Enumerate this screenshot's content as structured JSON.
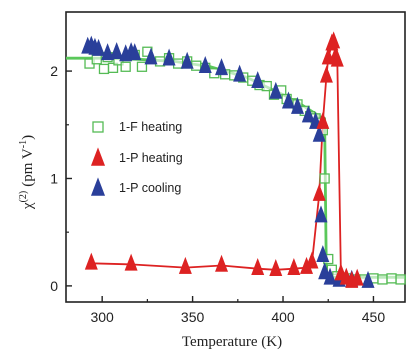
{
  "chart_data": {
    "type": "scatter",
    "title": "",
    "xlabel": "Temperature (K)",
    "ylabel_parts": {
      "chi": "χ",
      "sup": "(2)",
      "unit_open": "(pm V",
      "unit_exp": "-1",
      "unit_close": ")"
    },
    "xlim": [
      280,
      468
    ],
    "ylim": [
      -0.15,
      2.55
    ],
    "xticks": [
      {
        "value": 300,
        "label": "300"
      },
      {
        "value": 350,
        "label": "350"
      },
      {
        "value": 400,
        "label": "400"
      },
      {
        "value": 450,
        "label": "450"
      }
    ],
    "yticks": [
      {
        "value": 0,
        "label": "0"
      },
      {
        "value": 1,
        "label": "1"
      },
      {
        "value": 2,
        "label": "2"
      }
    ],
    "grid": false,
    "legend_position": "left-center",
    "series": [
      {
        "name": "1-F heating",
        "marker": "open-square",
        "color": "#55bb55",
        "points": [
          [
            293,
            2.07
          ],
          [
            297,
            2.11
          ],
          [
            301,
            2.02
          ],
          [
            303,
            2.13
          ],
          [
            306,
            2.03
          ],
          [
            309,
            2.1
          ],
          [
            313,
            2.04
          ],
          [
            318,
            2.15
          ],
          [
            322,
            2.04
          ],
          [
            325,
            2.18
          ],
          [
            332,
            2.09
          ],
          [
            337,
            2.12
          ],
          [
            342,
            2.07
          ],
          [
            347,
            2.09
          ],
          [
            352,
            2.05
          ],
          [
            357,
            2.03
          ],
          [
            362,
            1.98
          ],
          [
            368,
            1.97
          ],
          [
            373,
            1.96
          ],
          [
            378,
            1.94
          ],
          [
            383,
            1.91
          ],
          [
            387,
            1.87
          ],
          [
            391,
            1.86
          ],
          [
            395,
            1.78
          ],
          [
            399,
            1.82
          ],
          [
            402,
            1.74
          ],
          [
            405,
            1.7
          ],
          [
            408,
            1.69
          ],
          [
            412,
            1.63
          ],
          [
            415,
            1.58
          ],
          [
            418,
            1.56
          ],
          [
            420,
            1.52
          ],
          [
            422,
            1.45
          ],
          [
            423,
            1.0
          ],
          [
            425,
            0.25
          ],
          [
            427,
            0.15
          ],
          [
            430,
            0.09
          ],
          [
            435,
            0.07
          ],
          [
            440,
            0.06
          ],
          [
            445,
            0.06
          ],
          [
            450,
            0.07
          ],
          [
            455,
            0.06
          ],
          [
            460,
            0.07
          ],
          [
            465,
            0.06
          ]
        ],
        "fit_line": [
          [
            280,
            2.12
          ],
          [
            300,
            2.12
          ],
          [
            320,
            2.11
          ],
          [
            340,
            2.09
          ],
          [
            360,
            2.04
          ],
          [
            380,
            1.94
          ],
          [
            400,
            1.78
          ],
          [
            410,
            1.69
          ],
          [
            421,
            1.57
          ],
          [
            423,
            1.56
          ],
          [
            424,
            0.08
          ],
          [
            468,
            0.08
          ]
        ]
      },
      {
        "name": "1-P heating",
        "marker": "filled-triangle",
        "color": "#dd2222",
        "points": [
          [
            294,
            0.21
          ],
          [
            316,
            0.2
          ],
          [
            346,
            0.17
          ],
          [
            366,
            0.19
          ],
          [
            386,
            0.16
          ],
          [
            396,
            0.15
          ],
          [
            406,
            0.16
          ],
          [
            413,
            0.17
          ],
          [
            416,
            0.22
          ],
          [
            420,
            0.85
          ],
          [
            422,
            1.52
          ],
          [
            424,
            1.95
          ],
          [
            425,
            2.12
          ],
          [
            427,
            2.25
          ],
          [
            428,
            2.27
          ],
          [
            429,
            2.13
          ],
          [
            430,
            2.1
          ],
          [
            432,
            0.11
          ],
          [
            435,
            0.07
          ],
          [
            438,
            0.04
          ],
          [
            441,
            0.06
          ]
        ]
      },
      {
        "name": "1-P cooling",
        "marker": "filled-triangle",
        "color": "#2a3f9a",
        "points": [
          [
            292,
            2.22
          ],
          [
            294,
            2.23
          ],
          [
            296,
            2.21
          ],
          [
            298,
            2.2
          ],
          [
            303,
            2.16
          ],
          [
            308,
            2.17
          ],
          [
            313,
            2.15
          ],
          [
            316,
            2.17
          ],
          [
            318,
            2.16
          ],
          [
            327,
            2.12
          ],
          [
            337,
            2.11
          ],
          [
            347,
            2.08
          ],
          [
            357,
            2.04
          ],
          [
            366,
            2.02
          ],
          [
            376,
            1.96
          ],
          [
            386,
            1.9
          ],
          [
            396,
            1.8
          ],
          [
            403,
            1.71
          ],
          [
            408,
            1.66
          ],
          [
            414,
            1.58
          ],
          [
            418,
            1.52
          ],
          [
            420,
            1.4
          ],
          [
            421,
            0.65
          ],
          [
            422,
            0.28
          ],
          [
            423,
            0.12
          ],
          [
            426,
            0.07
          ],
          [
            431,
            0.05
          ],
          [
            438,
            0.05
          ],
          [
            447,
            0.04
          ]
        ]
      }
    ],
    "colors": {
      "axis": "#222222",
      "fit_green": "#5ac85a",
      "red_line": "#dd2222"
    }
  }
}
